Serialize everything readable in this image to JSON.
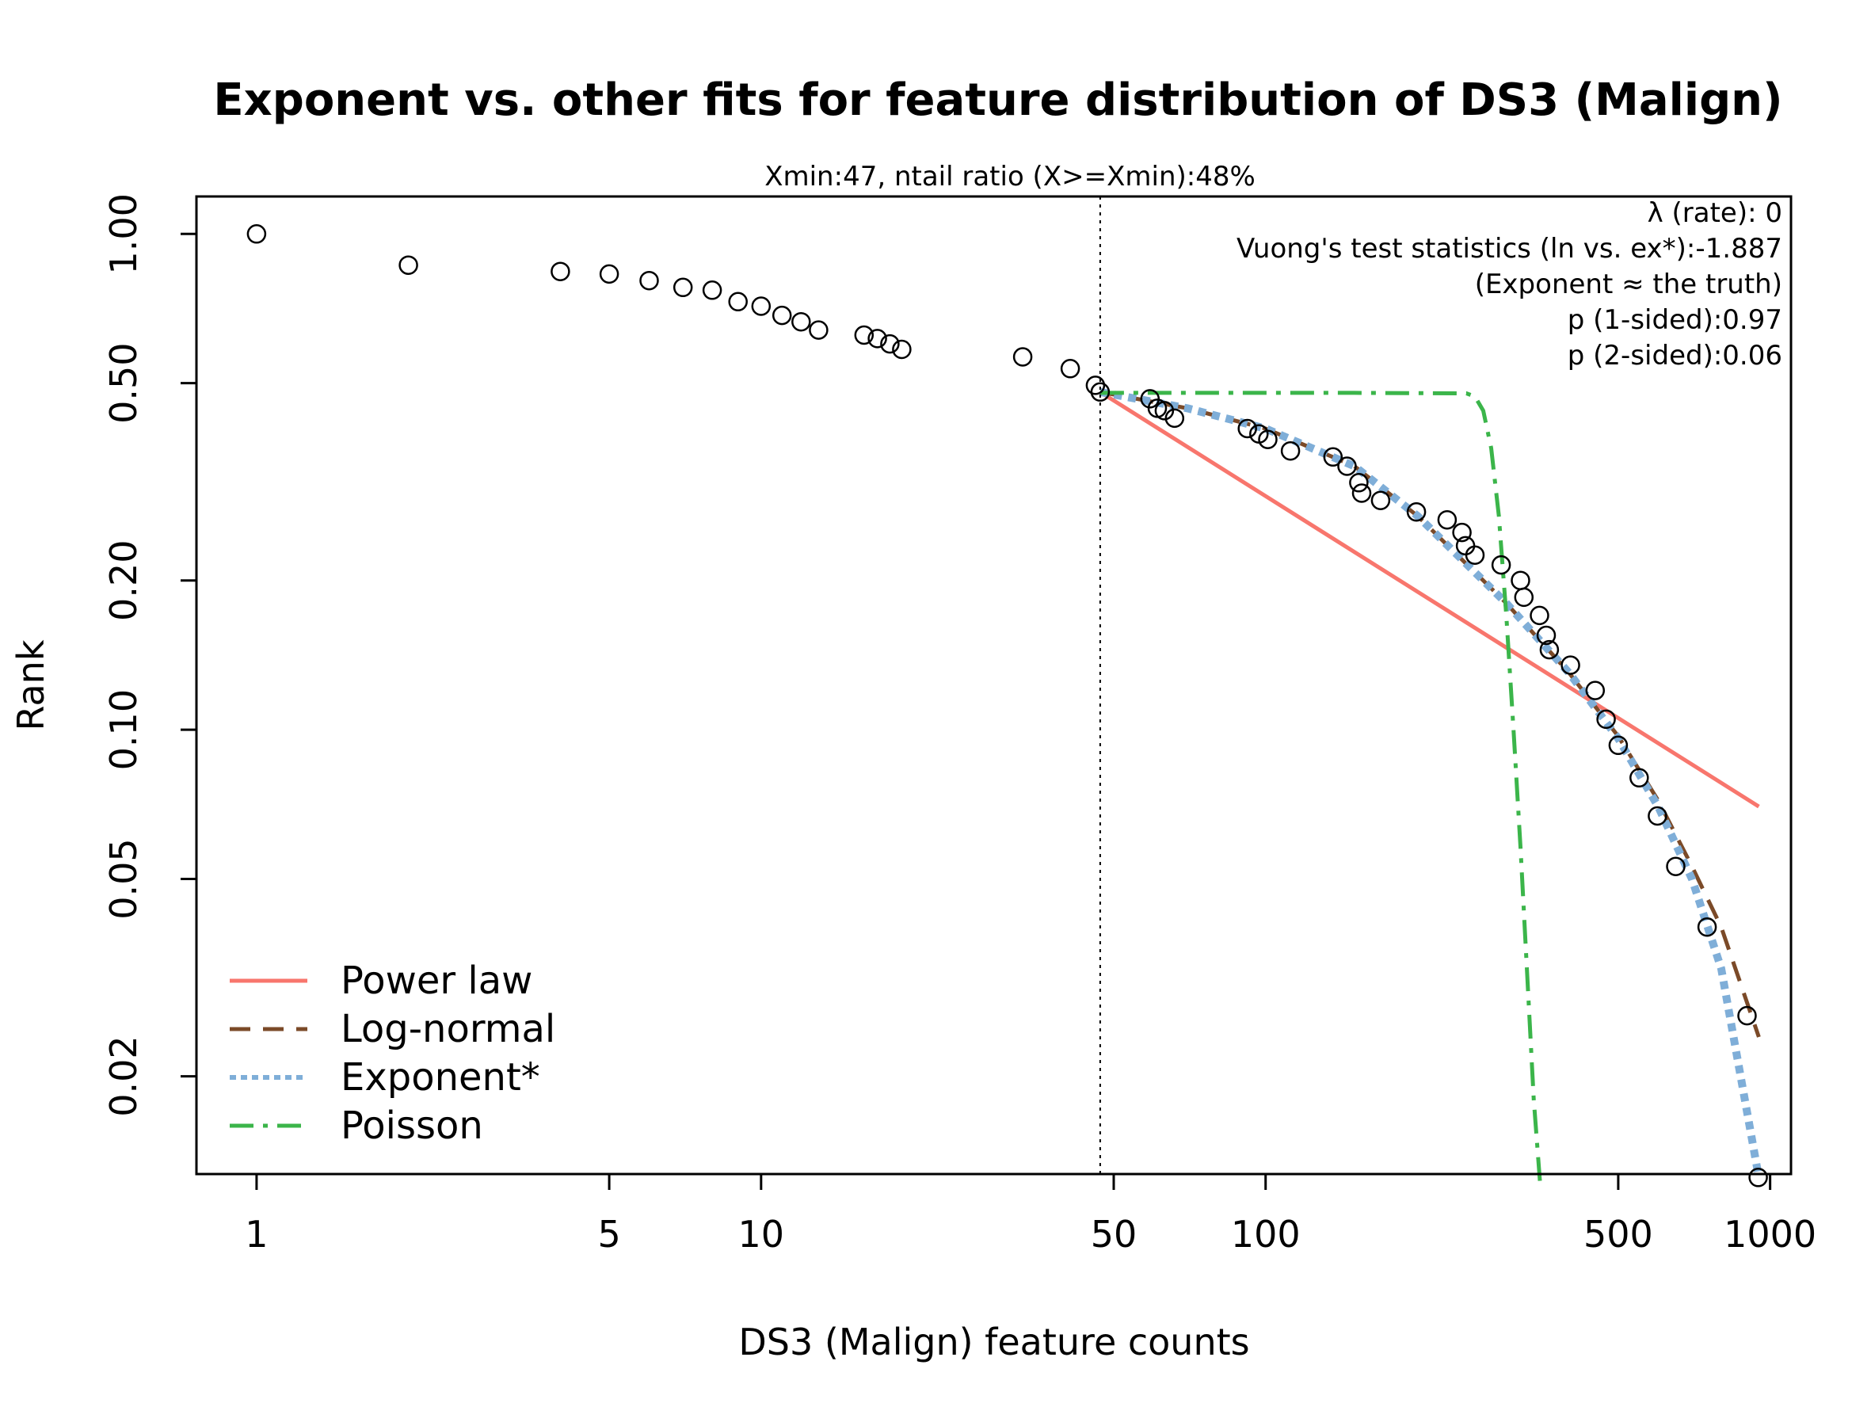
{
  "chart_data": {
    "type": "scatter",
    "title": "Exponent vs. other fits for feature distribution of DS3 (Malign)",
    "subtitle": "Xmin:47, ntail ratio (X>=Xmin):48%",
    "xlabel": "DS3 (Malign) feature counts",
    "ylabel": "Rank",
    "x_scale": "log",
    "y_scale": "log",
    "xlim": [
      0.76,
      1100
    ],
    "ylim": [
      0.0127,
      1.19
    ],
    "x_ticks": [
      {
        "value": 1,
        "label": "1"
      },
      {
        "value": 5,
        "label": "5"
      },
      {
        "value": 10,
        "label": "10"
      },
      {
        "value": 50,
        "label": "50"
      },
      {
        "value": 100,
        "label": "100"
      },
      {
        "value": 500,
        "label": "500"
      },
      {
        "value": 1000,
        "label": "1000"
      }
    ],
    "y_ticks": [
      {
        "value": 1.0,
        "label": "1.00"
      },
      {
        "value": 0.5,
        "label": "0.50"
      },
      {
        "value": 0.2,
        "label": "0.20"
      },
      {
        "value": 0.1,
        "label": "0.10"
      },
      {
        "value": 0.05,
        "label": "0.05"
      },
      {
        "value": 0.02,
        "label": "0.02"
      }
    ],
    "xmin_line": 47,
    "annotations": [
      "λ (rate): 0",
      "Vuong's test statistics (ln vs. ex*):-1.887",
      "(Exponent ≈ the truth)",
      "p (1-sided):0.97",
      "p (2-sided):0.06"
    ],
    "points": [
      [
        1,
        1.0
      ],
      [
        2,
        0.865
      ],
      [
        4,
        0.84
      ],
      [
        5,
        0.83
      ],
      [
        6,
        0.805
      ],
      [
        7,
        0.78
      ],
      [
        8,
        0.77
      ],
      [
        9,
        0.73
      ],
      [
        10,
        0.715
      ],
      [
        11,
        0.685
      ],
      [
        12,
        0.665
      ],
      [
        13,
        0.64
      ],
      [
        16,
        0.625
      ],
      [
        17,
        0.615
      ],
      [
        18,
        0.6
      ],
      [
        19,
        0.585
      ],
      [
        33,
        0.565
      ],
      [
        41,
        0.535
      ],
      [
        46,
        0.495
      ],
      [
        47,
        0.48
      ],
      [
        59,
        0.465
      ],
      [
        61,
        0.445
      ],
      [
        63,
        0.44
      ],
      [
        66,
        0.425
      ],
      [
        92,
        0.405
      ],
      [
        97,
        0.395
      ],
      [
        101,
        0.385
      ],
      [
        112,
        0.365
      ],
      [
        136,
        0.355
      ],
      [
        145,
        0.34
      ],
      [
        153,
        0.315
      ],
      [
        155,
        0.3
      ],
      [
        169,
        0.29
      ],
      [
        199,
        0.275
      ],
      [
        229,
        0.265
      ],
      [
        245,
        0.25
      ],
      [
        249,
        0.235
      ],
      [
        260,
        0.225
      ],
      [
        293,
        0.215
      ],
      [
        320,
        0.2
      ],
      [
        325,
        0.185
      ],
      [
        349,
        0.17
      ],
      [
        360,
        0.155
      ],
      [
        365,
        0.145
      ],
      [
        402,
        0.135
      ],
      [
        450,
        0.12
      ],
      [
        473,
        0.105
      ],
      [
        500,
        0.093
      ],
      [
        550,
        0.08
      ],
      [
        598,
        0.067
      ],
      [
        650,
        0.053
      ],
      [
        750,
        0.04
      ],
      [
        900,
        0.0265
      ],
      [
        947,
        0.0125
      ]
    ],
    "series": [
      {
        "name": "Power law",
        "color": "#F8766D",
        "style": "solid",
        "points": [
          [
            47,
            0.48
          ],
          [
            950,
            0.07
          ]
        ]
      },
      {
        "name": "Log-normal",
        "color": "#7B4A28",
        "style": "dashed",
        "points": [
          [
            47,
            0.48
          ],
          [
            70,
            0.445
          ],
          [
            100,
            0.405
          ],
          [
            150,
            0.34
          ],
          [
            200,
            0.27
          ],
          [
            300,
            0.18
          ],
          [
            400,
            0.13
          ],
          [
            500,
            0.097
          ],
          [
            600,
            0.072
          ],
          [
            700,
            0.053
          ],
          [
            800,
            0.04
          ],
          [
            950,
            0.024
          ]
        ]
      },
      {
        "name": "Exponent*",
        "color": "#7FAED8",
        "style": "dotted",
        "points": [
          [
            47,
            0.48
          ],
          [
            70,
            0.445
          ],
          [
            100,
            0.405
          ],
          [
            150,
            0.34
          ],
          [
            200,
            0.27
          ],
          [
            300,
            0.18
          ],
          [
            400,
            0.13
          ],
          [
            500,
            0.096
          ],
          [
            600,
            0.07
          ],
          [
            700,
            0.05
          ],
          [
            800,
            0.033
          ],
          [
            950,
            0.0125
          ]
        ]
      },
      {
        "name": "Poisson",
        "color": "#3BB54A",
        "style": "dashdot",
        "points": [
          [
            47,
            0.478
          ],
          [
            150,
            0.478
          ],
          [
            250,
            0.477
          ],
          [
            260,
            0.47
          ],
          [
            270,
            0.44
          ],
          [
            280,
            0.37
          ],
          [
            290,
            0.27
          ],
          [
            300,
            0.17
          ],
          [
            310,
            0.1
          ],
          [
            320,
            0.058
          ],
          [
            330,
            0.032
          ],
          [
            340,
            0.018
          ],
          [
            350,
            0.0122
          ]
        ]
      }
    ],
    "legend_position": "bottom-left"
  }
}
